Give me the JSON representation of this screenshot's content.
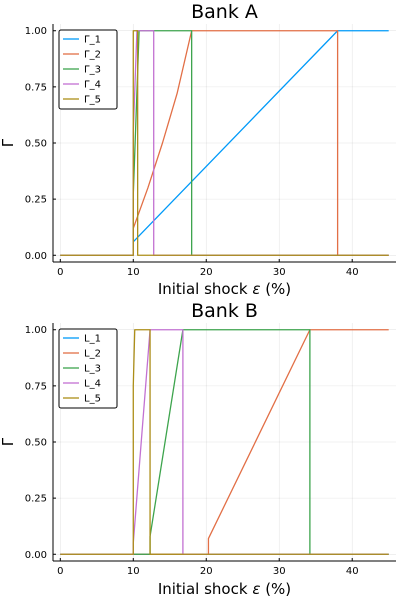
{
  "chart_data": [
    {
      "type": "line",
      "title": "Bank A",
      "xlabel": "Initial shock",
      "xlabel_symbol": "ε",
      "xlabel_unit": "(%)",
      "ylabel": "Γ",
      "xlim": [
        -1,
        46
      ],
      "ylim": [
        -0.03,
        1.03
      ],
      "x_ticks": [
        0,
        10,
        20,
        30,
        40
      ],
      "y_ticks": [
        0.0,
        0.25,
        0.5,
        0.75,
        1.0
      ],
      "x_tick_labels": [
        "0",
        "10",
        "20",
        "30",
        "40"
      ],
      "y_tick_labels": [
        "0.00",
        "0.25",
        "0.50",
        "0.75",
        "1.00"
      ],
      "grid": true,
      "legend_position": "top-left",
      "series": [
        {
          "name": "Γ_1",
          "color": "#009af9",
          "points": [
            [
              0,
              0
            ],
            [
              10,
              0
            ],
            [
              10,
              0.06
            ],
            [
              38,
              1
            ],
            [
              45,
              1
            ]
          ]
        },
        {
          "name": "Γ_2",
          "color": "#e26f46",
          "points": [
            [
              0,
              0
            ],
            [
              10,
              0
            ],
            [
              10,
              0.12
            ],
            [
              12,
              0.3
            ],
            [
              14,
              0.5
            ],
            [
              16,
              0.72
            ],
            [
              18,
              1
            ],
            [
              38,
              1
            ],
            [
              38,
              0
            ],
            [
              45,
              0
            ]
          ]
        },
        {
          "name": "Γ_3",
          "color": "#3da44d",
          "points": [
            [
              0,
              0
            ],
            [
              10,
              0
            ],
            [
              10,
              0.27
            ],
            [
              10.8,
              1
            ],
            [
              18,
              1
            ],
            [
              18,
              0
            ],
            [
              45,
              0
            ]
          ]
        },
        {
          "name": "Γ_4",
          "color": "#c271d2",
          "points": [
            [
              0,
              0
            ],
            [
              10,
              0
            ],
            [
              10,
              0.55
            ],
            [
              10.5,
              1
            ],
            [
              12.8,
              1
            ],
            [
              12.8,
              0
            ],
            [
              45,
              0
            ]
          ]
        },
        {
          "name": "Γ_5",
          "color": "#ac8e18",
          "points": [
            [
              0,
              0
            ],
            [
              10,
              0
            ],
            [
              10,
              1
            ],
            [
              10.6,
              1
            ],
            [
              10.6,
              0
            ],
            [
              45,
              0
            ]
          ]
        }
      ]
    },
    {
      "type": "line",
      "title": "Bank B",
      "xlabel": "Initial shock",
      "xlabel_symbol": "ε",
      "xlabel_unit": "(%)",
      "ylabel": "Γ",
      "xlim": [
        -1,
        46
      ],
      "ylim": [
        -0.03,
        1.03
      ],
      "x_ticks": [
        0,
        10,
        20,
        30,
        40
      ],
      "y_ticks": [
        0.0,
        0.25,
        0.5,
        0.75,
        1.0
      ],
      "x_tick_labels": [
        "0",
        "10",
        "20",
        "30",
        "40"
      ],
      "y_tick_labels": [
        "0.00",
        "0.25",
        "0.50",
        "0.75",
        "1.00"
      ],
      "grid": true,
      "legend_position": "top-left",
      "series": [
        {
          "name": "L_1",
          "color": "#009af9",
          "points": [
            [
              0,
              0
            ],
            [
              45,
              0
            ]
          ]
        },
        {
          "name": "L_2",
          "color": "#e26f46",
          "points": [
            [
              0,
              0
            ],
            [
              20.3,
              0
            ],
            [
              20.3,
              0.07
            ],
            [
              34.2,
              1
            ],
            [
              45,
              1
            ]
          ]
        },
        {
          "name": "L_3",
          "color": "#3da44d",
          "points": [
            [
              0,
              0
            ],
            [
              12.3,
              0
            ],
            [
              12.3,
              0.08
            ],
            [
              16.8,
              1
            ],
            [
              34.2,
              1
            ],
            [
              34.2,
              0
            ],
            [
              45,
              0
            ]
          ]
        },
        {
          "name": "L_4",
          "color": "#c271d2",
          "points": [
            [
              0,
              0
            ],
            [
              10,
              0
            ],
            [
              10,
              0.05
            ],
            [
              12.3,
              1
            ],
            [
              16.8,
              1
            ],
            [
              16.8,
              0
            ],
            [
              45,
              0
            ]
          ]
        },
        {
          "name": "L_5",
          "color": "#ac8e18",
          "points": [
            [
              0,
              0
            ],
            [
              10,
              0
            ],
            [
              10,
              0.75
            ],
            [
              10.2,
              1
            ],
            [
              12.3,
              1
            ],
            [
              12.3,
              0
            ],
            [
              45,
              0
            ]
          ]
        }
      ]
    }
  ]
}
